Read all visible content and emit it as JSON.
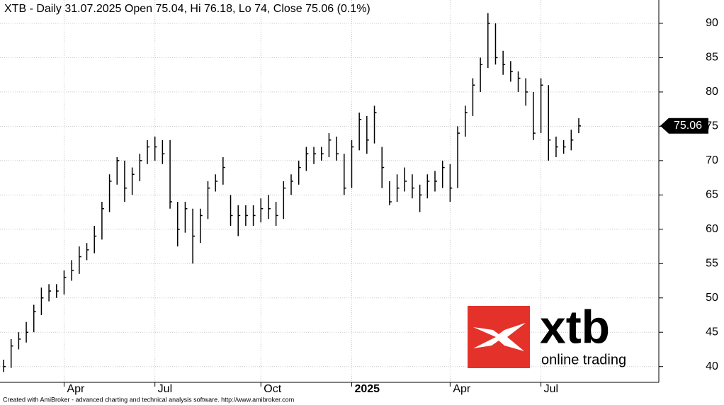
{
  "chart_data": {
    "type": "ohlc",
    "title": "XTB - Daily 31.07.2025 Open 75.04, Hi 76.18, Lo 74, Close 75.06 (0.1%)",
    "categories": [
      null,
      null,
      null,
      null,
      null,
      null,
      null,
      null,
      "Apr",
      null,
      null,
      null,
      null,
      null,
      null,
      null,
      null,
      null,
      null,
      null,
      "Jul",
      null,
      null,
      null,
      null,
      null,
      null,
      null,
      null,
      null,
      null,
      null,
      null,
      null,
      "Oct",
      null,
      null,
      null,
      null,
      null,
      null,
      null,
      null,
      null,
      null,
      null,
      "2025",
      null,
      null,
      null,
      null,
      null,
      null,
      null,
      null,
      null,
      null,
      null,
      null,
      "Apr",
      null,
      null,
      null,
      null,
      null,
      null,
      null,
      null,
      null,
      null,
      null,
      "Jul",
      null,
      null,
      null,
      null,
      null
    ],
    "high": [
      41,
      44,
      45,
      46.5,
      49,
      51.5,
      52,
      52,
      54,
      55.5,
      57.5,
      58,
      60.5,
      64,
      68,
      70.5,
      70,
      69,
      71,
      73,
      73.5,
      73,
      73,
      64,
      64,
      63,
      63,
      67,
      68,
      70.5,
      65,
      63.5,
      63.5,
      63.5,
      64.5,
      65,
      64,
      67,
      68,
      70,
      72,
      72,
      72,
      74,
      73.5,
      71,
      73,
      77,
      76.5,
      78,
      72,
      67,
      68,
      69,
      68,
      66.5,
      68,
      68.5,
      70,
      69.5,
      75,
      78,
      82,
      85,
      91.5,
      90,
      86,
      84.5,
      83,
      82,
      80,
      82,
      81,
      73.5,
      73,
      74.5,
      76.18
    ],
    "low": [
      39.2,
      39.8,
      42.5,
      43.5,
      45,
      47.5,
      49.5,
      50,
      50.5,
      52.5,
      53.5,
      55.5,
      56.5,
      58.5,
      62.5,
      66.5,
      64,
      65,
      67,
      69.5,
      70,
      69.5,
      63,
      57.5,
      59.5,
      55,
      58,
      61.5,
      65.5,
      66.5,
      60.5,
      59,
      60.5,
      60.5,
      61,
      61.5,
      60.5,
      61.5,
      65,
      66.5,
      68.5,
      69.5,
      70,
      70.5,
      70,
      65,
      66,
      71.5,
      71,
      72.5,
      66,
      63.5,
      64,
      65.5,
      64.5,
      62.5,
      64.5,
      65.5,
      66,
      64,
      66,
      73.5,
      76.5,
      80,
      83.5,
      84,
      82.5,
      81.5,
      80,
      78,
      73,
      74,
      70,
      70.5,
      71,
      71.5,
      74
    ],
    "close": [
      40,
      43,
      44,
      45,
      48,
      50,
      51,
      51,
      53,
      54,
      56,
      57,
      59,
      63,
      67,
      70,
      66,
      68,
      70,
      72,
      72,
      71,
      64,
      60,
      63,
      59,
      62,
      66,
      67,
      69,
      62,
      62,
      62,
      62,
      63,
      63,
      62,
      66,
      67,
      69,
      71,
      71,
      71,
      73,
      71,
      66,
      72,
      76,
      73,
      77,
      69,
      64,
      66,
      67,
      66,
      65,
      67,
      67,
      69,
      66,
      74,
      77,
      81,
      84,
      90,
      85,
      84,
      83,
      82,
      80,
      74,
      81,
      73,
      72,
      72,
      73,
      75.06
    ],
    "last_price": 75.06,
    "ylim": [
      37.7,
      93.4
    ],
    "yticks": [
      40,
      45,
      50,
      55,
      60,
      65,
      70,
      75,
      80,
      85,
      90
    ],
    "grid": true,
    "color": "#000000"
  },
  "logo": {
    "brand": "xtb",
    "tagline": "online trading"
  },
  "footer": "Created with AmiBroker - advanced charting and technical analysis software. http://www.amibroker.com"
}
